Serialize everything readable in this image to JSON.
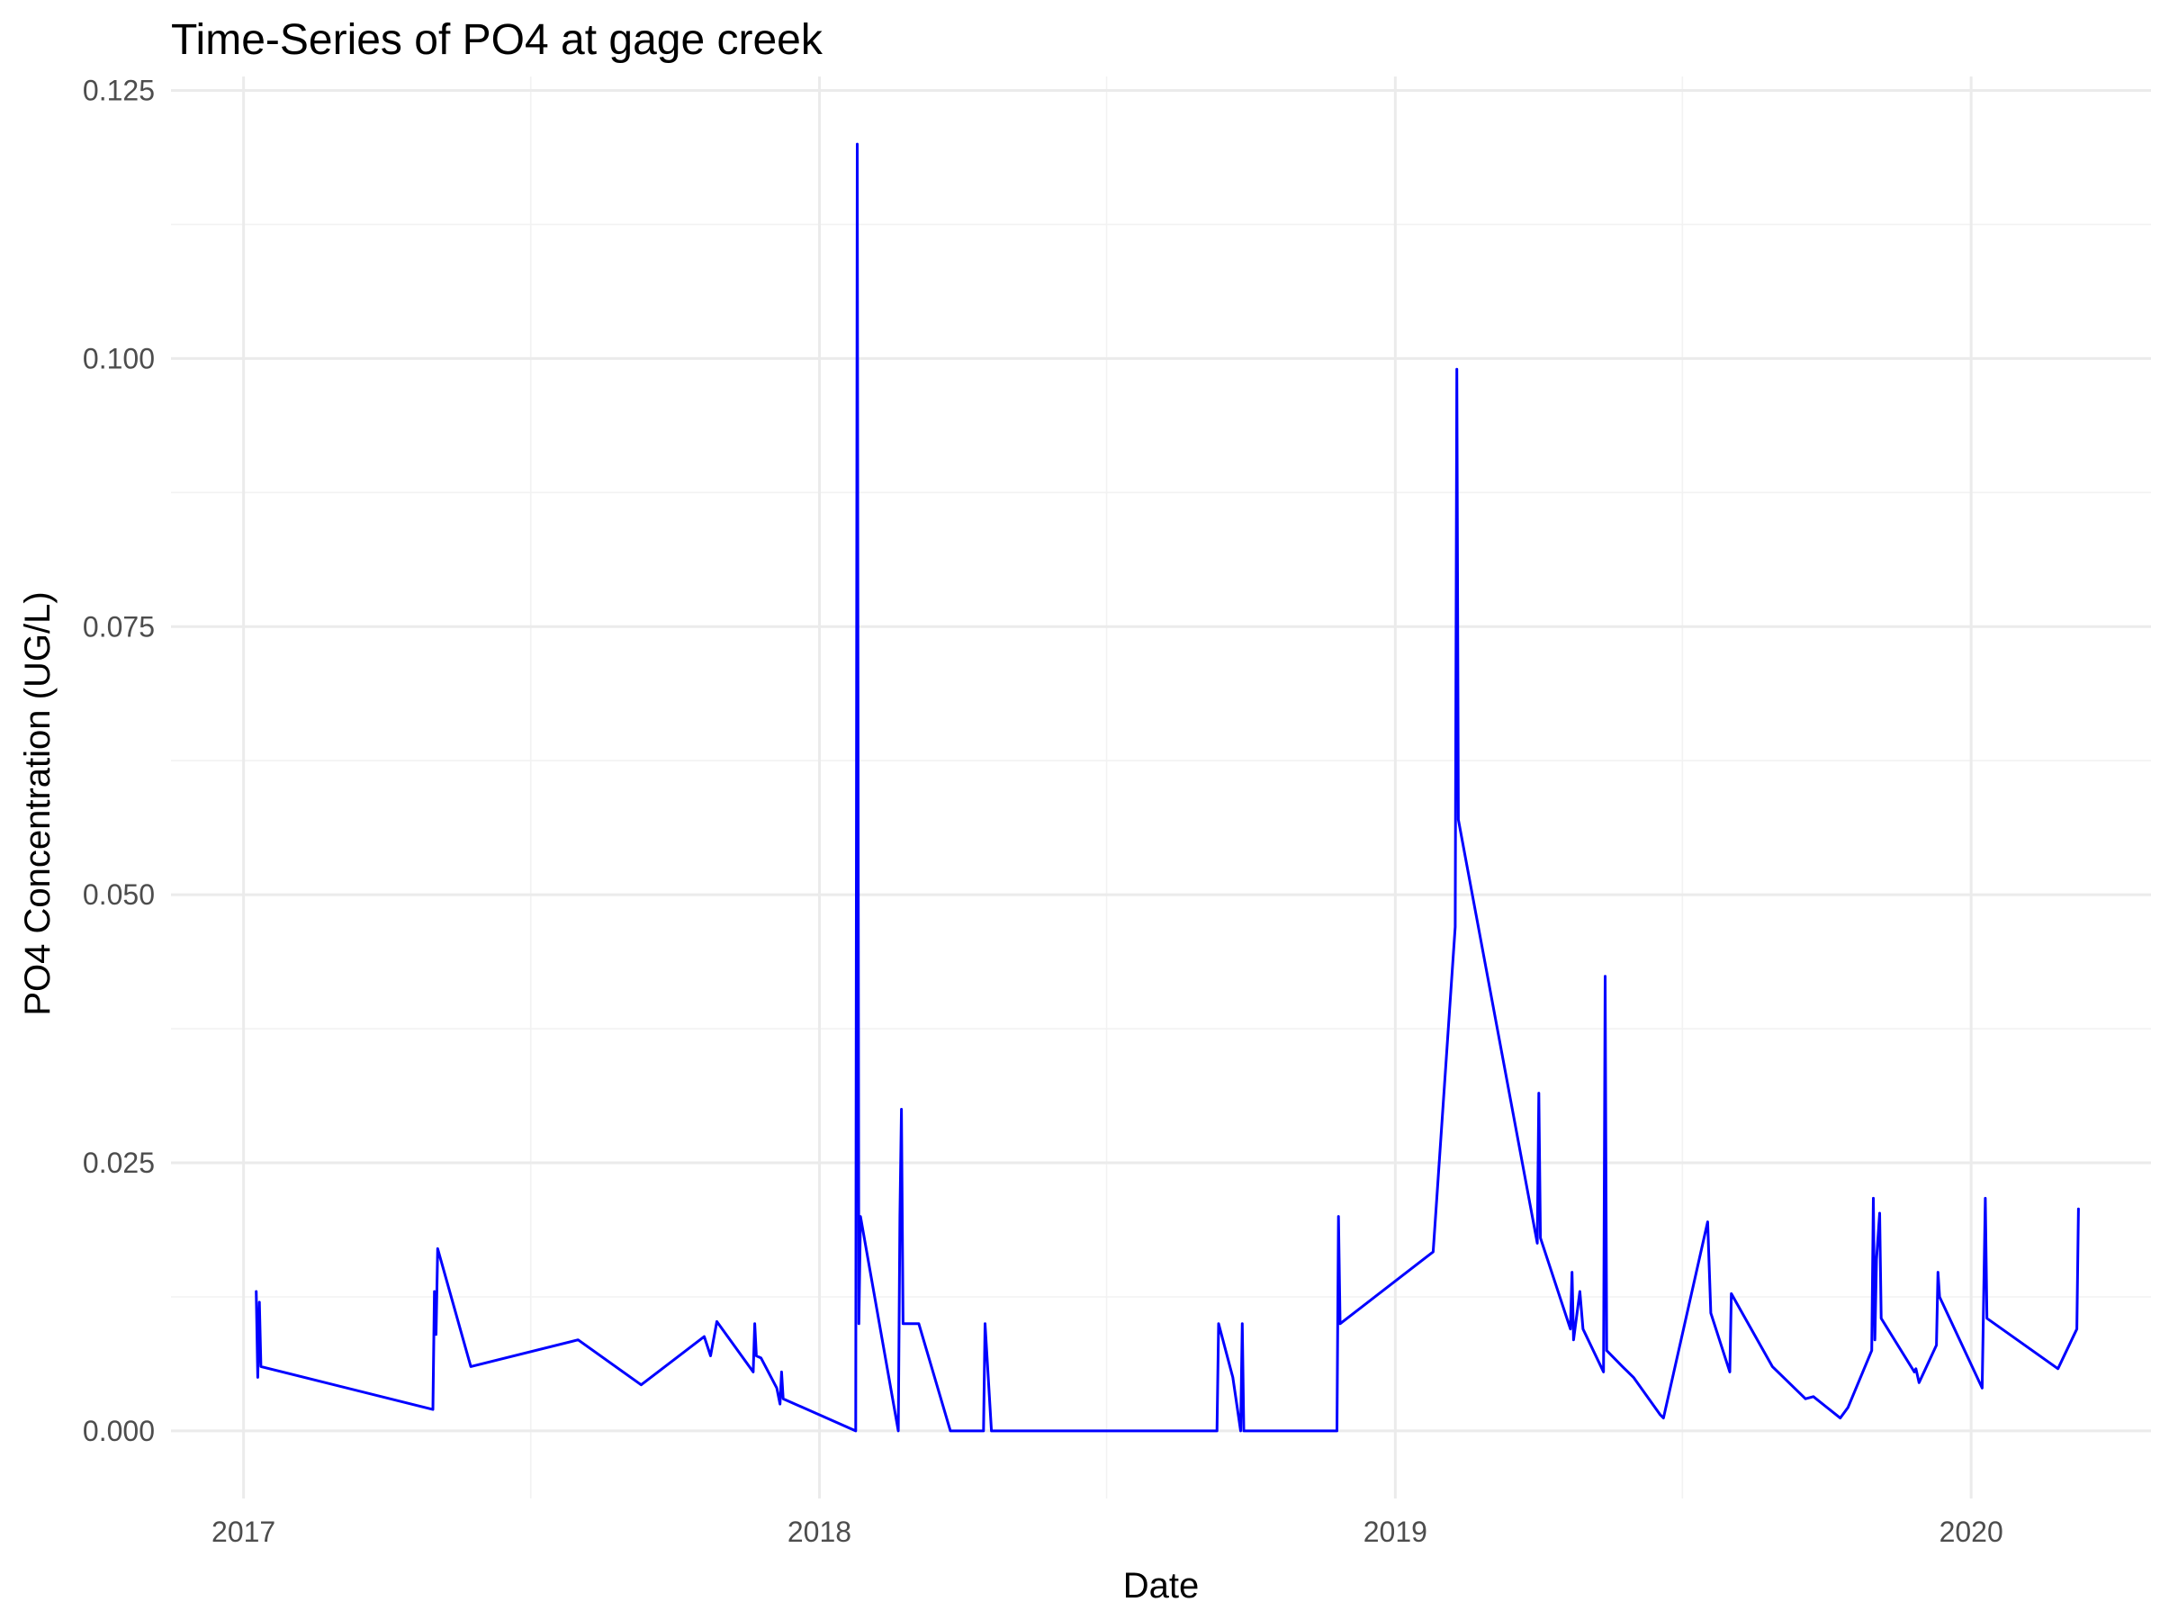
{
  "chart_data": {
    "type": "line",
    "title": "Time-Series of PO4 at gage creek",
    "xlabel": "Date",
    "ylabel": "PO4 Concentration (UG/L)",
    "x_is_date": true,
    "xlim": [
      "2016-11-16",
      "2020-04-24"
    ],
    "ylim": [
      -0.0063,
      0.1263
    ],
    "x_ticks": [
      {
        "value": "2017-01-01",
        "label": "2017"
      },
      {
        "value": "2018-01-01",
        "label": "2018"
      },
      {
        "value": "2019-01-01",
        "label": "2019"
      },
      {
        "value": "2020-01-01",
        "label": "2020"
      }
    ],
    "x_minor_ticks": [
      "2017-07-02",
      "2018-07-02",
      "2019-07-02"
    ],
    "y_ticks": [
      {
        "value": 0,
        "label": "0.000"
      },
      {
        "value": 0.025,
        "label": "0.025"
      },
      {
        "value": 0.05,
        "label": "0.050"
      },
      {
        "value": 0.075,
        "label": "0.075"
      },
      {
        "value": 0.1,
        "label": "0.100"
      },
      {
        "value": 0.125,
        "label": "0.125"
      }
    ],
    "y_minor_ticks": [
      0.0125,
      0.0375,
      0.0625,
      0.0875,
      0.1125
    ],
    "grid": true,
    "legend": "none",
    "series": [
      {
        "color": "#0000ff",
        "points": [
          [
            "2017-01-09",
            0.013
          ],
          [
            "2017-01-10",
            0.005
          ],
          [
            "2017-01-11",
            0.012
          ],
          [
            "2017-01-12",
            0.006
          ],
          [
            "2017-05-01",
            0.002
          ],
          [
            "2017-05-02",
            0.013
          ],
          [
            "2017-05-03",
            0.009
          ],
          [
            "2017-05-04",
            0.017
          ],
          [
            "2017-05-25",
            0.006
          ],
          [
            "2017-08-01",
            0.0085
          ],
          [
            "2017-09-10",
            0.0043
          ],
          [
            "2017-10-20",
            0.0088
          ],
          [
            "2017-10-24",
            0.007
          ],
          [
            "2017-10-28",
            0.0102
          ],
          [
            "2017-11-20",
            0.0055
          ],
          [
            "2017-11-21",
            0.01
          ],
          [
            "2017-11-22",
            0.007
          ],
          [
            "2017-11-25",
            0.0068
          ],
          [
            "2017-12-05",
            0.004
          ],
          [
            "2017-12-07",
            0.0025
          ],
          [
            "2017-12-08",
            0.0055
          ],
          [
            "2017-12-09",
            0.003
          ],
          [
            "2018-01-24",
            0.0
          ],
          [
            "2018-01-25",
            0.12
          ],
          [
            "2018-01-26",
            0.01
          ],
          [
            "2018-01-27",
            0.02
          ],
          [
            "2018-02-20",
            0.0
          ],
          [
            "2018-02-21",
            0.02
          ],
          [
            "2018-02-22",
            0.03
          ],
          [
            "2018-02-23",
            0.01
          ],
          [
            "2018-03-05",
            0.01
          ],
          [
            "2018-03-25",
            0.0
          ],
          [
            "2018-04-15",
            0.0
          ],
          [
            "2018-04-16",
            0.01
          ],
          [
            "2018-04-20",
            0.0
          ],
          [
            "2018-09-10",
            0.0
          ],
          [
            "2018-09-11",
            0.01
          ],
          [
            "2018-09-20",
            0.005
          ],
          [
            "2018-09-25",
            0.0
          ],
          [
            "2018-09-26",
            0.01
          ],
          [
            "2018-09-27",
            0.0
          ],
          [
            "2018-11-25",
            0.0
          ],
          [
            "2018-11-26",
            0.02
          ],
          [
            "2018-11-27",
            0.01
          ],
          [
            "2019-01-25",
            0.0167
          ],
          [
            "2019-02-08",
            0.047
          ],
          [
            "2019-02-09",
            0.099
          ],
          [
            "2019-02-10",
            0.057
          ],
          [
            "2019-04-01",
            0.0175
          ],
          [
            "2019-04-02",
            0.0315
          ],
          [
            "2019-04-03",
            0.018
          ],
          [
            "2019-04-22",
            0.0095
          ],
          [
            "2019-04-23",
            0.0148
          ],
          [
            "2019-04-24",
            0.0085
          ],
          [
            "2019-04-28",
            0.013
          ],
          [
            "2019-04-30",
            0.0095
          ],
          [
            "2019-05-13",
            0.0055
          ],
          [
            "2019-05-14",
            0.0424
          ],
          [
            "2019-05-15",
            0.0075
          ],
          [
            "2019-05-25",
            0.006
          ],
          [
            "2019-06-01",
            0.005
          ],
          [
            "2019-06-18",
            0.0015
          ],
          [
            "2019-06-20",
            0.0012
          ],
          [
            "2019-07-18",
            0.0195
          ],
          [
            "2019-07-20",
            0.011
          ],
          [
            "2019-08-01",
            0.0055
          ],
          [
            "2019-08-02",
            0.0128
          ],
          [
            "2019-08-28",
            0.006
          ],
          [
            "2019-09-18",
            0.003
          ],
          [
            "2019-09-23",
            0.0032
          ],
          [
            "2019-10-10",
            0.0012
          ],
          [
            "2019-10-15",
            0.0022
          ],
          [
            "2019-10-30",
            0.0075
          ],
          [
            "2019-10-31",
            0.0217
          ],
          [
            "2019-11-01",
            0.0085
          ],
          [
            "2019-11-02",
            0.016
          ],
          [
            "2019-11-04",
            0.0203
          ],
          [
            "2019-11-05",
            0.0105
          ],
          [
            "2019-11-26",
            0.0055
          ],
          [
            "2019-11-27",
            0.0058
          ],
          [
            "2019-11-29",
            0.0045
          ],
          [
            "2019-12-10",
            0.008
          ],
          [
            "2019-12-11",
            0.0148
          ],
          [
            "2019-12-12",
            0.0125
          ],
          [
            "2020-01-08",
            0.004
          ],
          [
            "2020-01-10",
            0.0217
          ],
          [
            "2020-01-11",
            0.0105
          ],
          [
            "2020-02-25",
            0.0058
          ],
          [
            "2020-03-08",
            0.0095
          ],
          [
            "2020-03-09",
            0.0207
          ]
        ]
      }
    ]
  }
}
